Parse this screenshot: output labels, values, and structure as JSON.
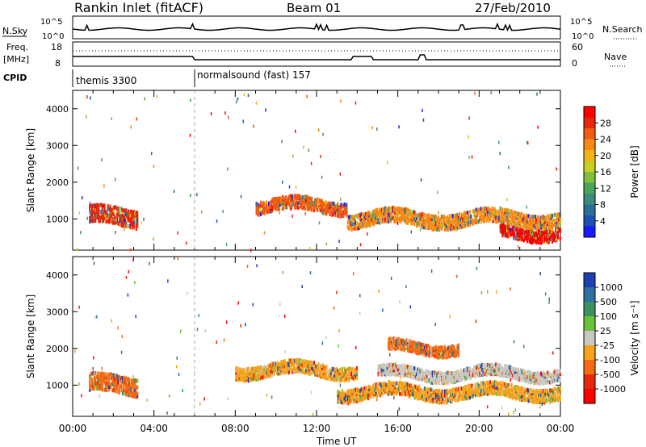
{
  "header": {
    "station": "Rankin Inlet (fitACF)",
    "beam": "Beam 01",
    "date": "27/Feb/2010"
  },
  "top_panels": {
    "nsky_label": "N.Sky",
    "nsky_ticks": [
      "10^5",
      "10^0"
    ],
    "nsearch_label": "N.Search",
    "nsearch_ticks": [
      "10^5",
      "10^0"
    ],
    "freq_label_1": "Freq.",
    "freq_label_2": "[MHz]",
    "freq_ticks": [
      "18",
      "8"
    ],
    "nave_label": "Nave",
    "nave_ticks": [
      "60",
      "0"
    ],
    "cpid_label": "CPID",
    "cpid_segments": [
      {
        "label": "themis 3300",
        "start_h": 0,
        "end_h": 6.0
      },
      {
        "label": "normalsound (fast) 157",
        "start_h": 6.0,
        "end_h": 24
      }
    ]
  },
  "chart_data": [
    {
      "type": "heatmap",
      "name": "power",
      "ylabel": "Slant Range [km]",
      "xlabel": "",
      "xlim": [
        0,
        24
      ],
      "ylim": [
        150,
        4500
      ],
      "yticks": [
        1000,
        2000,
        3000,
        4000
      ],
      "colorbar": {
        "label": "Power [dB]",
        "ticks": [
          "4",
          "8",
          "12",
          "16",
          "20",
          "24",
          "28"
        ],
        "colors": [
          "#1a1aff",
          "#1f4fb4",
          "#2b6e9a",
          "#3f8a7e",
          "#4aa45a",
          "#7fbf3b",
          "#c9cf25",
          "#f3b21a",
          "#f78a16",
          "#f25a12",
          "#e8260c",
          "#ff0000"
        ]
      },
      "bands": [
        {
          "t0": 0.8,
          "t1": 3.2,
          "r_center": 1050,
          "thickness": 500,
          "color": "#e8260c"
        },
        {
          "t0": 9.0,
          "t1": 13.5,
          "r_center": 1350,
          "thickness": 350,
          "color": "#f25a12"
        },
        {
          "t0": 13.5,
          "t1": 24.0,
          "r_center": 1000,
          "thickness": 400,
          "color": "#f78a16"
        },
        {
          "t0": 21.0,
          "t1": 24.0,
          "r_center": 600,
          "thickness": 300,
          "color": "#ff0000"
        }
      ]
    },
    {
      "type": "heatmap",
      "name": "velocity",
      "ylabel": "Slant Range [km]",
      "xlabel": "Time UT",
      "xlim": [
        0,
        24
      ],
      "ylim": [
        150,
        4500
      ],
      "xticks": [
        "00:00",
        "04:00",
        "08:00",
        "12:00",
        "16:00",
        "20:00",
        "00:00"
      ],
      "yticks": [
        1000,
        2000,
        3000,
        4000
      ],
      "colorbar": {
        "label": "Velocity [m s⁻¹]",
        "ticks": [
          "1000",
          "500",
          "100",
          "25",
          "-25",
          "-100",
          "-500",
          "-1000"
        ],
        "colors": [
          "#1f3fb4",
          "#2e6fa0",
          "#3c9060",
          "#6bc03a",
          "#c8c8c0",
          "#f7a21a",
          "#f36a12",
          "#e8260c",
          "#ff0000"
        ]
      },
      "bands": [
        {
          "t0": 0.8,
          "t1": 3.2,
          "r_center": 1000,
          "thickness": 500,
          "color": "#f36a12"
        },
        {
          "t0": 8.0,
          "t1": 14.0,
          "r_center": 1400,
          "thickness": 350,
          "color": "#f7a21a"
        },
        {
          "t0": 15.0,
          "t1": 24.0,
          "r_center": 1300,
          "thickness": 300,
          "color": "#c8c8c0"
        },
        {
          "t0": 15.5,
          "t1": 19.0,
          "r_center": 2000,
          "thickness": 300,
          "color": "#f36a12"
        },
        {
          "t0": 13.0,
          "t1": 24.0,
          "r_center": 800,
          "thickness": 350,
          "color": "#f7a21a"
        }
      ]
    }
  ]
}
